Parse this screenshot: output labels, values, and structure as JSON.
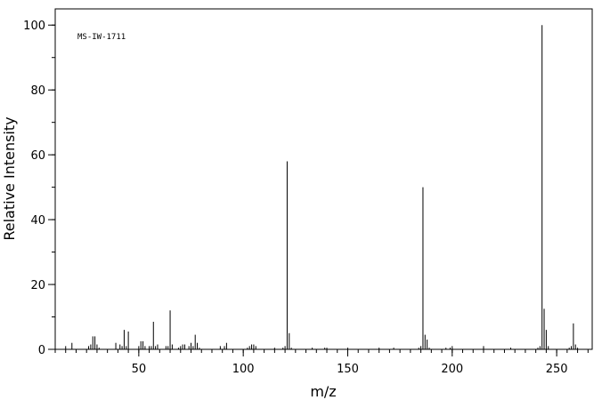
{
  "chart_data": {
    "type": "stick",
    "annotation": "MS-IW-1711",
    "xlabel": "m/z",
    "ylabel": "Relative Intensity",
    "x": [
      15,
      18,
      26,
      27,
      28,
      29,
      30,
      31,
      39,
      41,
      42,
      43,
      44,
      45,
      50,
      51,
      52,
      53,
      55,
      56,
      57,
      58,
      59,
      63,
      64,
      65,
      66,
      69,
      70,
      71,
      72,
      74,
      75,
      76,
      77,
      78,
      79,
      89,
      91,
      92,
      102,
      103,
      104,
      105,
      106,
      115,
      119,
      120,
      121,
      122,
      123,
      133,
      139,
      140,
      150,
      165,
      172,
      184,
      185,
      186,
      187,
      188,
      189,
      197,
      199,
      200,
      215,
      228,
      241,
      242,
      243,
      244,
      245,
      246,
      256,
      257,
      258,
      259,
      260
    ],
    "values": [
      1,
      2,
      1,
      1.5,
      4,
      4,
      1.5,
      0.5,
      2,
      1.5,
      1,
      6,
      1,
      5.5,
      1,
      2.5,
      2.5,
      1,
      1,
      1,
      8.5,
      1,
      1.5,
      1,
      1,
      12,
      1.5,
      0.5,
      1,
      1.5,
      1.5,
      1,
      2,
      1,
      4.5,
      2,
      0.5,
      1,
      1,
      2,
      0.5,
      1,
      1.5,
      1.5,
      1,
      0.5,
      0.5,
      1,
      58,
      5,
      0.5,
      0.5,
      0.5,
      0.5,
      0.5,
      0.5,
      0.5,
      0.5,
      1,
      50,
      4.5,
      3,
      0.5,
      0.5,
      0.5,
      1,
      1,
      0.5,
      0.5,
      1,
      100,
      12.5,
      6,
      1,
      0.5,
      1,
      8,
      1.5,
      0.5
    ],
    "color": "#000000",
    "xlim": [
      10,
      267
    ],
    "xticks": [
      50,
      100,
      150,
      200,
      250
    ],
    "x_minor_step": 5,
    "ylim": [
      0,
      105
    ],
    "yticks": [
      0,
      20,
      40,
      60,
      80,
      100
    ],
    "y_minor_step": 10
  }
}
